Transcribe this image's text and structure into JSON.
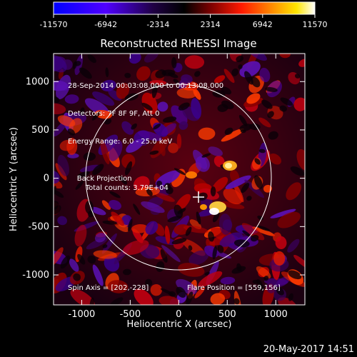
{
  "colorbar": {
    "ticks": [
      "-11570",
      "-6942",
      "-2314",
      "2314",
      "6942",
      "11570"
    ],
    "palette": [
      "#0000ff",
      "#5a00ff",
      "#2a0058",
      "#000000",
      "#6a0000",
      "#ff0000",
      "#ff8c00",
      "#ffff00",
      "#ffffff"
    ]
  },
  "plot": {
    "title": "Reconstructed RHESSI Image",
    "xlabel": "Heliocentric X (arcsec)",
    "ylabel": "Heliocentric Y (arcsec)",
    "xticks": [
      "-1000",
      "-500",
      "0",
      "500",
      "1000"
    ],
    "yticks": [
      "1000",
      "500",
      "0",
      "-500",
      "-1000"
    ],
    "xrange": [
      -1290,
      1300
    ],
    "yrange": [
      -1310,
      1290
    ]
  },
  "annotations": {
    "time_range": "28-Sep-2014 00:03:08.000 to 00:13:08.000",
    "detectors": "Detectors: 7F 8F 9F, Att 0",
    "energy": "Energy Range: 6.0 - 25.0 keV",
    "method": "Back Projection",
    "counts": "Total counts: 3.79E+04",
    "spin_axis": "Spin Axis = [202,-228]",
    "flare_position": "Flare Position = [559,156]"
  },
  "footer": {
    "timestamp": "20-May-2017 14:51"
  },
  "chart_data": {
    "type": "heatmap",
    "title": "Reconstructed RHESSI Image",
    "xlabel": "Heliocentric X (arcsec)",
    "ylabel": "Heliocentric Y (arcsec)",
    "colorbar_range": [
      -11570,
      11570
    ],
    "xlim": [
      -1290,
      1300
    ],
    "ylim": [
      -1310,
      1290
    ],
    "solar_limb_radius_arcsec": 950,
    "map_center_marker": [
      202,
      -228
    ]
  }
}
